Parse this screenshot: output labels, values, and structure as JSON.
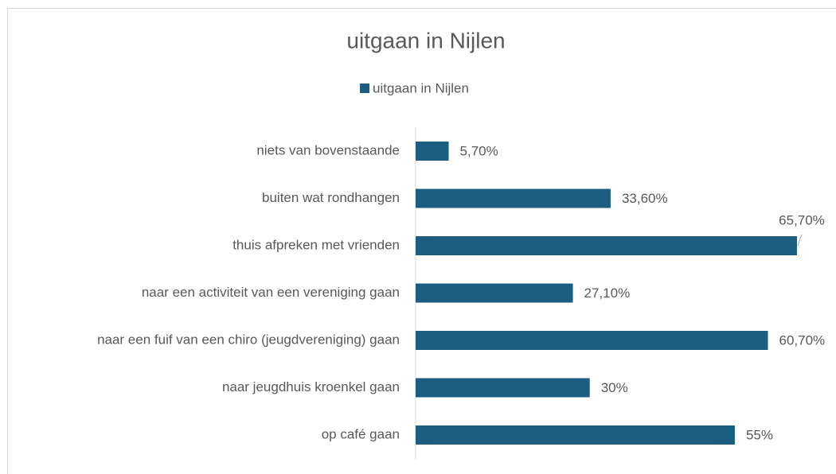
{
  "chart_data": {
    "type": "bar",
    "orientation": "horizontal",
    "title": "uitgaan in Nijlen",
    "categories": [
      "niets van bovenstaande",
      "buiten wat rondhangen",
      "thuis afpreken met vrienden",
      "naar een activiteit van een vereniging gaan",
      "naar een fuif van een chiro (jeugdvereniging) gaan",
      "naar jeugdhuis kroenkel gaan",
      "op café gaan"
    ],
    "series": [
      {
        "name": "uitgaan in Nijlen",
        "color": "#1b5e80",
        "values": [
          5.7,
          33.6,
          65.7,
          27.1,
          60.7,
          30,
          55
        ],
        "value_labels": [
          "5,70%",
          "33,60%",
          "65,70%",
          "27,10%",
          "60,70%",
          "30%",
          "55%"
        ]
      }
    ],
    "legend": "top"
  }
}
